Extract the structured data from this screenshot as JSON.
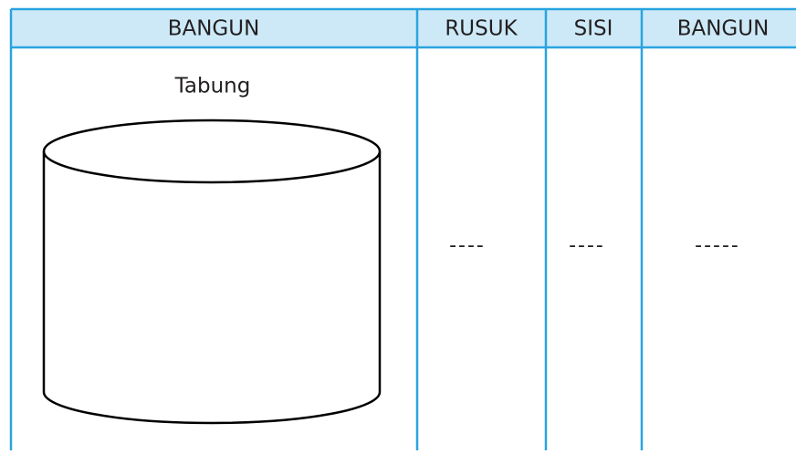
{
  "table": {
    "headers": [
      "BANGUN",
      "RUSUK",
      "SISI",
      "BANGUN"
    ],
    "rows": [
      [
        "Tabung",
        "----",
        "----",
        "-----"
      ]
    ]
  }
}
